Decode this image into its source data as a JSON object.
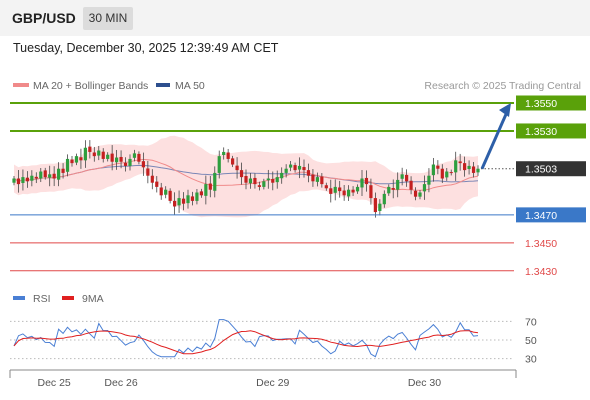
{
  "header": {
    "pair": "GBP/USD",
    "timeframe": "30 MIN"
  },
  "timestamp": "Tuesday, December 30, 2025 12:39:49 AM CET",
  "legend": {
    "items": [
      {
        "label": "MA 20 + Bollinger Bands",
        "color": "#f08a8a"
      },
      {
        "label": "MA 50",
        "color": "#2d4f8e"
      }
    ],
    "credit": "Research © 2025 Trading Central"
  },
  "levels": [
    {
      "value": 1.355,
      "label": "1.3550",
      "kind": "target",
      "color": "#5aa10a"
    },
    {
      "value": 1.353,
      "label": "1.3530",
      "kind": "target",
      "color": "#5aa10a"
    },
    {
      "value": 1.3503,
      "label": "1.3503",
      "kind": "last",
      "color": "#333333"
    },
    {
      "value": 1.347,
      "label": "1.3470",
      "kind": "pivot",
      "color": "#3a78c8"
    },
    {
      "value": 1.345,
      "label": "1.3450",
      "kind": "support",
      "color": "#e04848"
    },
    {
      "value": 1.343,
      "label": "1.3430",
      "kind": "support",
      "color": "#e04848"
    }
  ],
  "price_range": [
    1.3422,
    1.3555
  ],
  "rsi": {
    "legend": [
      {
        "label": "RSI",
        "color": "#4a7fd4"
      },
      {
        "label": "9MA",
        "color": "#e02020"
      }
    ],
    "ticks": [
      "70",
      "50",
      "30"
    ],
    "tick_values": [
      70,
      50,
      30
    ],
    "range": [
      22,
      78
    ]
  },
  "x_axis": {
    "labels": [
      "Dec 25",
      "Dec 26",
      "Dec 29",
      "Dec 30"
    ],
    "label_index": [
      9,
      24,
      58,
      92
    ]
  },
  "colors": {
    "up": "#2e9e3e",
    "down": "#c42020",
    "band_fill": "#fde0e0",
    "ma20": "#f08a8a",
    "ma50": "#7a86b6",
    "arrow": "#2d5fa8"
  },
  "chart_data": {
    "type": "candlestick",
    "title": "GBP/USD",
    "ylim": [
      1.3422,
      1.3555
    ],
    "levels": [
      1.355,
      1.353,
      1.3503,
      1.347,
      1.345,
      1.343
    ],
    "close": [
      1.3496,
      1.3492,
      1.3497,
      1.3494,
      1.3498,
      1.3496,
      1.3501,
      1.3497,
      1.3499,
      1.3496,
      1.3503,
      1.35,
      1.351,
      1.3507,
      1.3512,
      1.3509,
      1.3518,
      1.3515,
      1.3512,
      1.3516,
      1.351,
      1.3513,
      1.3508,
      1.3511,
      1.3508,
      1.3505,
      1.351,
      1.3514,
      1.3508,
      1.3504,
      1.3498,
      1.3493,
      1.349,
      1.3484,
      1.3488,
      1.348,
      1.3476,
      1.3482,
      1.3478,
      1.3484,
      1.348,
      1.3486,
      1.3484,
      1.3492,
      1.3488,
      1.35,
      1.3512,
      1.3515,
      1.351,
      1.3506,
      1.3502,
      1.3497,
      1.3493,
      1.3496,
      1.3492,
      1.349,
      1.3494,
      1.3496,
      1.3493,
      1.3497,
      1.35,
      1.3503,
      1.3506,
      1.3502,
      1.3505,
      1.3502,
      1.3498,
      1.3494,
      1.3497,
      1.3492,
      1.3489,
      1.3485,
      1.349,
      1.3487,
      1.3484,
      1.3488,
      1.3486,
      1.349,
      1.3496,
      1.3492,
      1.3482,
      1.3472,
      1.3478,
      1.3485,
      1.349,
      1.3488,
      1.3495,
      1.3499,
      1.3494,
      1.3488,
      1.3483,
      1.3486,
      1.3492,
      1.3498,
      1.3506,
      1.3503,
      1.3496,
      1.3501,
      1.35,
      1.3509,
      1.3507,
      1.3502,
      1.3505,
      1.35,
      1.3503
    ]
  }
}
